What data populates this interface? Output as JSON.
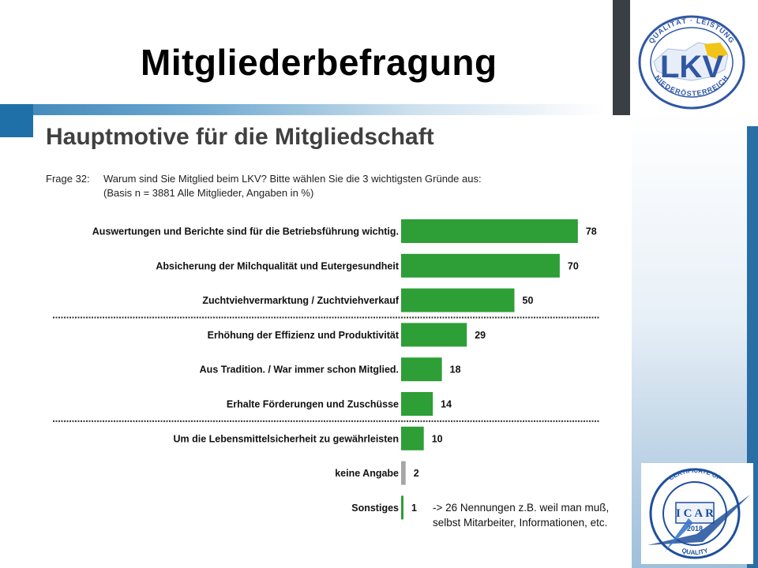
{
  "slide": {
    "title": "Mitgliederbefragung"
  },
  "logos": {
    "lkv": {
      "ring_text": "QUALITÄT · LEISTUNG · NIEDERÖSTERREICH",
      "letters": "LKV"
    },
    "icar": {
      "ring_text": "CERTIFICATE OF QUALITY · QUOD SCRIPTUM EST MANET",
      "center": "ICAR",
      "year": "2018"
    }
  },
  "colors": {
    "bar": "#2e9e36",
    "bar_na": "#a6a6a6",
    "heading": "#404040"
  },
  "chart_data": {
    "type": "bar",
    "orientation": "horizontal",
    "title": "Hauptmotive für die Mitgliedschaft",
    "question_label": "Frage 32:",
    "question": "Warum sind Sie Mitglied beim LKV? Bitte wählen Sie die 3 wichtigsten Gründe aus:",
    "basis": "(Basis n = 3881 Alle Mitglieder, Angaben in %)",
    "categories": [
      "Auswertungen und Berichte sind für die Betriebsführung wichtig.",
      "Absicherung der Milchqualität und Eutergesundheit",
      "Zuchtviehvermarktung / Zuchtviehverkauf",
      "Erhöhung der Effizienz und Produktivität",
      "Aus Tradition. / War immer schon Mitglied.",
      "Erhalte Förderungen und Zuschüsse",
      "Um die Lebensmittelsicherheit zu gewährleisten",
      "keine Angabe",
      "Sonstiges"
    ],
    "values": [
      78,
      70,
      50,
      29,
      18,
      14,
      10,
      2,
      1
    ],
    "bar_colors": [
      "#2e9e36",
      "#2e9e36",
      "#2e9e36",
      "#2e9e36",
      "#2e9e36",
      "#2e9e36",
      "#2e9e36",
      "#a6a6a6",
      "#2e9e36"
    ],
    "group_separators_after": [
      2,
      5
    ],
    "note": [
      "-> 26 Nennungen z.B. weil man muß,",
      "selbst Mitarbeiter, Informationen, etc."
    ]
  }
}
